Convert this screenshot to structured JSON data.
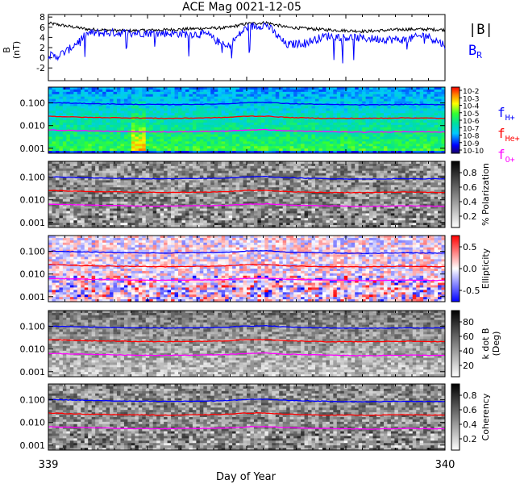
{
  "title": "ACE Mag 0021-12-05",
  "chart_data": {
    "type": "multi-panel spectrogram",
    "title": "ACE Mag 0021-12-05",
    "xlabel": "Day of Year",
    "x_ticks": [
      "339",
      "340"
    ],
    "xlim": [
      339,
      340
    ],
    "colors": {
      "B_total": "#000000",
      "B_R": "#0000ff",
      "f_H": "#0000ff",
      "f_He": "#ff0000",
      "f_O": "#ff00ff"
    },
    "panels": [
      {
        "id": "field",
        "type": "line",
        "ylabel": "B",
        "yunit": "(nT)",
        "ylim": [
          -4.5,
          8.5
        ],
        "y_ticks": [
          "8",
          "6",
          "4",
          "2",
          "0",
          "-2"
        ],
        "y_tick_values": [
          8,
          6,
          4,
          2,
          0,
          -2
        ],
        "series": [
          {
            "name": "|B|",
            "x": [
              339.0,
              339.05,
              339.1,
              339.2,
              339.3,
              339.4,
              339.45,
              339.5,
              339.55,
              339.6,
              339.7,
              339.8,
              339.9,
              339.95,
              340.0
            ],
            "y": [
              6.8,
              6.2,
              5.6,
              5.3,
              5.5,
              5.8,
              5.9,
              6.7,
              6.9,
              6.0,
              5.5,
              5.2,
              5.6,
              5.6,
              5.5
            ]
          },
          {
            "name": "B_R",
            "x": [
              339.0,
              339.02,
              339.05,
              339.08,
              339.1,
              339.15,
              339.2,
              339.3,
              339.4,
              339.45,
              339.5,
              339.55,
              339.6,
              339.65,
              339.7,
              339.8,
              339.9,
              339.95,
              340.0
            ],
            "y": [
              0.5,
              0.2,
              1.5,
              3.5,
              4.8,
              4.9,
              4.9,
              4.8,
              4.6,
              2.0,
              6.0,
              6.5,
              2.5,
              3.0,
              4.3,
              3.8,
              3.5,
              4.5,
              2.5
            ]
          }
        ],
        "legend": [
          {
            "label": "|B|",
            "series": "B_total"
          },
          {
            "label": "B",
            "sub": "R",
            "series": "B_R"
          }
        ]
      },
      {
        "id": "power",
        "type": "heatmap",
        "colorbar": "rainbow",
        "colorbar_ticks": [
          "10-2",
          "10-3",
          "10-4",
          "10-5",
          "10-6",
          "10-7",
          "10-8",
          "10-9",
          "10-10"
        ],
        "colorbar_label": "",
        "legend": [
          {
            "label": "f",
            "sub": "H+",
            "series": "f_H"
          },
          {
            "label": "f",
            "sub": "He+",
            "series": "f_He"
          },
          {
            "label": "f",
            "sub": "O+",
            "series": "f_O"
          }
        ]
      },
      {
        "id": "polarization",
        "type": "heatmap",
        "colorbar": "gray",
        "colorbar_label": "% Polarization",
        "colorbar_ticks": [
          "0.8",
          "0.6",
          "0.4",
          "0.2"
        ]
      },
      {
        "id": "ellipticity",
        "type": "heatmap",
        "colorbar": "bwr",
        "colorbar_label": "Ellipticity",
        "colorbar_ticks": [
          "0.5",
          "0.0",
          "-0.5"
        ]
      },
      {
        "id": "kdotb",
        "type": "heatmap",
        "colorbar": "gray",
        "colorbar_label": "k dot B",
        "colorbar_unit": "(Deg)",
        "colorbar_ticks": [
          "80",
          "60",
          "40",
          "20"
        ]
      },
      {
        "id": "coherency",
        "type": "heatmap",
        "colorbar": "gray",
        "colorbar_label": "Coherency",
        "colorbar_ticks": [
          "0.8",
          "0.6",
          "0.4",
          "0.2"
        ]
      }
    ],
    "freq_axis": {
      "scale": "log",
      "ylim": [
        0.0006,
        0.5
      ],
      "y_ticks": [
        "0.100",
        "0.010",
        "0.001"
      ],
      "y_tick_values": [
        0.1,
        0.01,
        0.001
      ]
    },
    "gyrofrequency_lines": {
      "x": [
        339.0,
        339.1,
        339.2,
        339.3,
        339.4,
        339.45,
        339.5,
        339.55,
        339.6,
        339.7,
        339.8,
        339.9,
        340.0
      ],
      "f_H": [
        0.103,
        0.094,
        0.087,
        0.085,
        0.088,
        0.092,
        0.103,
        0.106,
        0.094,
        0.086,
        0.082,
        0.086,
        0.084
      ],
      "f_He": [
        0.026,
        0.023,
        0.022,
        0.021,
        0.022,
        0.023,
        0.026,
        0.026,
        0.023,
        0.021,
        0.021,
        0.022,
        0.021
      ],
      "f_O": [
        0.0064,
        0.0059,
        0.0054,
        0.0053,
        0.0055,
        0.0057,
        0.0064,
        0.0066,
        0.0059,
        0.0054,
        0.0051,
        0.0054,
        0.0052
      ]
    }
  }
}
